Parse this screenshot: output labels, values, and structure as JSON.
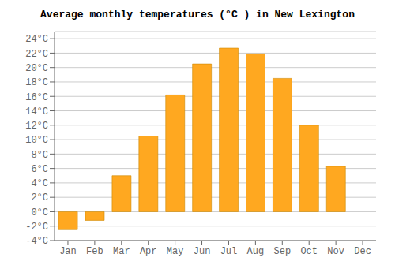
{
  "chart_data": {
    "type": "bar",
    "title": "Average monthly temperatures (°C ) in New Lexington",
    "categories": [
      "Jan",
      "Feb",
      "Mar",
      "Apr",
      "May",
      "Jun",
      "Jul",
      "Aug",
      "Sep",
      "Oct",
      "Nov",
      "Dec"
    ],
    "values": [
      -2.5,
      -1.2,
      5.0,
      10.5,
      16.2,
      20.5,
      22.7,
      21.9,
      18.5,
      12.0,
      6.3,
      0.0
    ],
    "color": "#FFA820",
    "ylim": [
      -4,
      25
    ],
    "yticks": [
      {
        "value": -4,
        "label": "-4°C"
      },
      {
        "value": -2,
        "label": "-2°C"
      },
      {
        "value": 0,
        "label": "0°C"
      },
      {
        "value": 2,
        "label": "2°C"
      },
      {
        "value": 4,
        "label": "4°C"
      },
      {
        "value": 6,
        "label": "6°C"
      },
      {
        "value": 8,
        "label": "8°C"
      },
      {
        "value": 10,
        "label": "10°C"
      },
      {
        "value": 12,
        "label": "12°C"
      },
      {
        "value": 14,
        "label": "14°C"
      },
      {
        "value": 16,
        "label": "16°C"
      },
      {
        "value": 18,
        "label": "18°C"
      },
      {
        "value": 20,
        "label": "20°C"
      },
      {
        "value": 22,
        "label": "22°C"
      },
      {
        "value": 24,
        "label": "24°C"
      }
    ],
    "grid": true
  }
}
